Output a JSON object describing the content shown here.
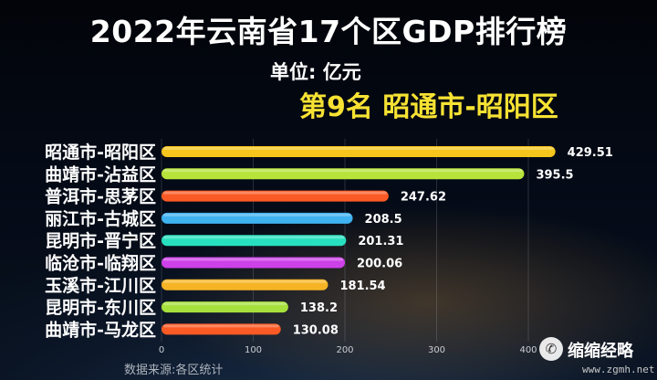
{
  "title": "2022年云南省17个区GDP排行榜",
  "unit": "单位: 亿元",
  "rank_label": "第9名 昭通市-昭阳区",
  "source": "数据来源:各区统计",
  "watermark": {
    "icon": "wechat-icon",
    "text": "缩缩经略",
    "url": "www.zgmh.net"
  },
  "chart_data": {
    "type": "bar",
    "orientation": "horizontal",
    "categories": [
      "昭通市-昭阳区",
      "曲靖市-沾益区",
      "普洱市-思茅区",
      "丽江市-古城区",
      "昆明市-晋宁区",
      "临沧市-临翔区",
      "玉溪市-江川区",
      "昆明市-东川区",
      "曲靖市-马龙区"
    ],
    "values": [
      429.51,
      395.5,
      247.62,
      208.5,
      201.31,
      200.06,
      181.54,
      138.2,
      130.08
    ],
    "value_labels": [
      "429.51",
      "395.5",
      "247.62",
      "208.5",
      "201.31",
      "200.06",
      "181.54",
      "138.2",
      "130.08"
    ],
    "colors": [
      "#f6c61c",
      "#b7e33a",
      "#fb5a25",
      "#3fb2f0",
      "#27e0bf",
      "#cd41e8",
      "#f6b425",
      "#a6e03c",
      "#fb5a25"
    ],
    "x_ticks": [
      "0",
      "100",
      "200",
      "300",
      "400"
    ],
    "xlim": [
      0,
      400
    ],
    "grid": true
  }
}
